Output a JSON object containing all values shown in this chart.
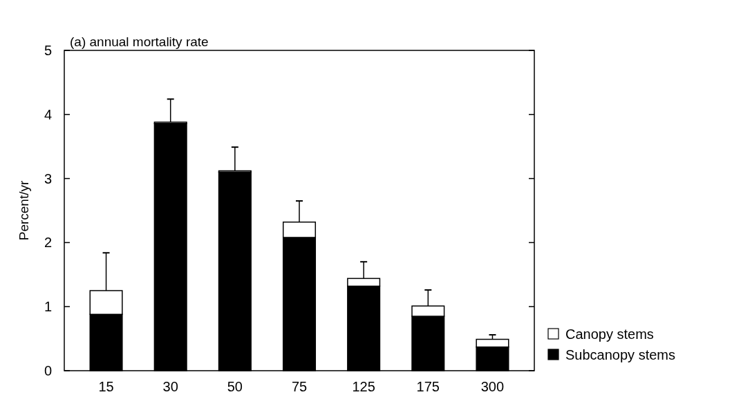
{
  "chart_data": {
    "type": "bar",
    "stacked": true,
    "title": "(a) annual mortality rate",
    "ylabel": "Percent/yr",
    "categories": [
      "15",
      "30",
      "50",
      "75",
      "125",
      "175",
      "300"
    ],
    "series": [
      {
        "name": "Subcanopy stems",
        "color": "#000000",
        "values": [
          0.88,
          3.86,
          3.1,
          2.08,
          1.32,
          0.85,
          0.37
        ]
      },
      {
        "name": "Canopy stems",
        "color": "#ffffff",
        "values": [
          0.37,
          0.02,
          0.02,
          0.24,
          0.12,
          0.16,
          0.12
        ],
        "errors": [
          [
            1.25,
            1.84
          ],
          [
            3.88,
            4.24
          ],
          [
            3.12,
            3.49
          ],
          [
            2.32,
            2.65
          ],
          [
            1.44,
            1.7
          ],
          [
            1.01,
            1.26
          ],
          [
            0.49,
            0.56
          ]
        ]
      }
    ],
    "ylim": [
      0,
      5
    ],
    "yticks": [
      0,
      1,
      2,
      3,
      4,
      5
    ],
    "grid": false,
    "legend": "bottom right"
  }
}
